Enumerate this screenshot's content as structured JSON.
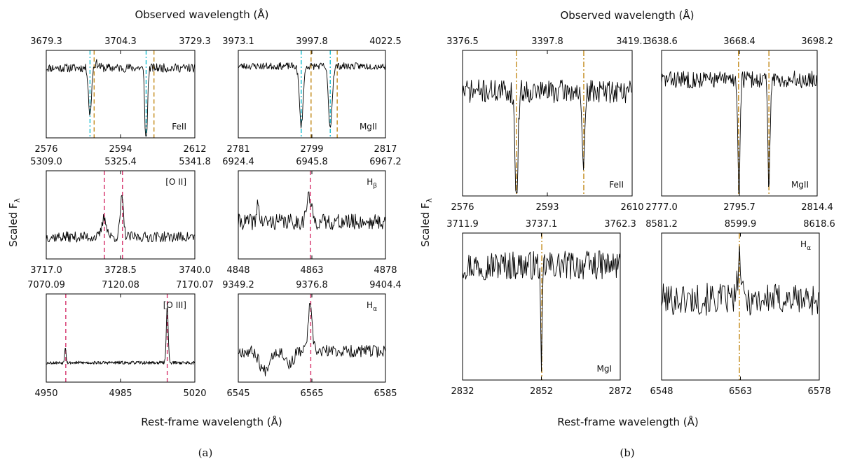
{
  "figure": {
    "left": {
      "top_xlabel": "Observed wavelength (Å)",
      "bottom_xlabel": "Rest-frame wavelength (Å)",
      "ylabel": "Scaled F",
      "ylabel_sub": "λ",
      "caption": "(a)"
    },
    "right": {
      "top_xlabel": "Observed wavelength (Å)",
      "bottom_xlabel": "Rest-frame wavelength (Å)",
      "ylabel": "Scaled F",
      "ylabel_sub": "λ",
      "caption": "(b)"
    }
  },
  "colors": {
    "cyan": "#17becf",
    "orange": "#c38a1a",
    "magenta": "#d6336c",
    "spectrum": "#000000"
  },
  "chart_data": [
    {
      "type": "line",
      "panel": "a-1",
      "title": "",
      "label": "FeII",
      "label_sub": "",
      "top_ticks": [
        "3679.3",
        "3704.3",
        "3729.3"
      ],
      "bottom_ticks": [
        "2576",
        "2594",
        "2612"
      ],
      "xlim": [
        2576,
        2612
      ],
      "lines": [
        {
          "x": 2586.6,
          "color": "cyan"
        },
        {
          "x": 2587.6,
          "color": "orange"
        },
        {
          "x": 2600.2,
          "color": "cyan"
        },
        {
          "x": 2602.1,
          "color": "orange"
        }
      ],
      "features": [
        {
          "x": 2586.6,
          "depth": -0.55,
          "width": 0.35
        },
        {
          "x": 2600.2,
          "depth": -0.92,
          "width": 0.3
        },
        {
          "x": 2588.1,
          "depth": 0.05,
          "width": 0.6
        }
      ],
      "baseline": 0.8,
      "noise": 0.05,
      "xmin_data": 2576,
      "xmax_data": 2612,
      "npts": 230,
      "seed": 11
    },
    {
      "type": "line",
      "panel": "a-2",
      "title": "",
      "label": "MgII",
      "label_sub": "",
      "top_ticks": [
        "3973.1",
        "3997.8",
        "4022.5"
      ],
      "bottom_ticks": [
        "2781",
        "2799",
        "2817"
      ],
      "xlim": [
        2781,
        2817
      ],
      "lines": [
        {
          "x": 2796.4,
          "color": "cyan"
        },
        {
          "x": 2798.8,
          "color": "orange"
        },
        {
          "x": 2803.5,
          "color": "cyan"
        },
        {
          "x": 2805.2,
          "color": "orange"
        }
      ],
      "features": [
        {
          "x": 2796.4,
          "depth": -0.68,
          "width": 0.45
        },
        {
          "x": 2803.5,
          "depth": -0.7,
          "width": 0.45
        }
      ],
      "baseline": 0.82,
      "noise": 0.04,
      "xmin_data": 2781,
      "xmax_data": 2817,
      "npts": 230,
      "seed": 23
    },
    {
      "type": "line",
      "panel": "a-3",
      "title": "",
      "label": "[O II]",
      "label_sub": "",
      "top_ticks": [
        "5309.0",
        "5325.4",
        "5341.8"
      ],
      "bottom_ticks": [
        "3717.0",
        "3728.5",
        "3740.0"
      ],
      "xlim": [
        3717.0,
        3740.0
      ],
      "lines": [
        {
          "x": 3726.0,
          "color": "magenta"
        },
        {
          "x": 3728.8,
          "color": "magenta"
        }
      ],
      "features": [
        {
          "x": 3726.0,
          "depth": 0.22,
          "width": 0.35
        },
        {
          "x": 3728.7,
          "depth": 0.44,
          "width": 0.25
        }
      ],
      "baseline": 0.25,
      "noise": 0.06,
      "xmin_data": 3717.0,
      "xmax_data": 3740.0,
      "npts": 200,
      "seed": 37
    },
    {
      "type": "line",
      "panel": "a-4",
      "title": "",
      "label": "H",
      "label_sub": "β",
      "top_ticks": [
        "6924.4",
        "6945.8",
        "6967.2"
      ],
      "bottom_ticks": [
        "4848",
        "4863",
        "4878"
      ],
      "xlim": [
        4848,
        4878
      ],
      "lines": [
        {
          "x": 4862.7,
          "color": "magenta"
        }
      ],
      "features": [
        {
          "x": 4862.4,
          "depth": 0.28,
          "width": 0.5
        },
        {
          "x": 4852.0,
          "depth": 0.28,
          "width": 0.18
        }
      ],
      "baseline": 0.42,
      "noise": 0.09,
      "xmin_data": 4848,
      "xmax_data": 4878,
      "npts": 200,
      "seed": 41
    },
    {
      "type": "line",
      "panel": "a-5",
      "title": "",
      "label": "[O III]",
      "label_sub": "",
      "top_ticks": [
        "7070.09",
        "7120.08",
        "7170.07"
      ],
      "bottom_ticks": [
        "4950",
        "4985",
        "5020"
      ],
      "xlim": [
        4950,
        5020
      ],
      "lines": [
        {
          "x": 4959.2,
          "color": "magenta"
        },
        {
          "x": 5007.0,
          "color": "magenta"
        }
      ],
      "features": [
        {
          "x": 4959.0,
          "depth": 0.18,
          "width": 0.35
        },
        {
          "x": 5007.0,
          "depth": 0.64,
          "width": 0.45
        }
      ],
      "baseline": 0.22,
      "noise": 0.018,
      "xmin_data": 4950,
      "xmax_data": 5020,
      "npts": 330,
      "seed": 53
    },
    {
      "type": "line",
      "panel": "a-6",
      "title": "",
      "label": "H",
      "label_sub": "α",
      "top_ticks": [
        "9349.2",
        "9376.8",
        "9404.4"
      ],
      "bottom_ticks": [
        "6545",
        "6565",
        "6585"
      ],
      "xlim": [
        6545,
        6585
      ],
      "lines": [
        {
          "x": 6564.7,
          "color": "magenta"
        }
      ],
      "features": [
        {
          "x": 6564.5,
          "depth": 0.5,
          "width": 0.55
        },
        {
          "x": 6552.0,
          "depth": -0.22,
          "width": 1.2
        },
        {
          "x": 6559.0,
          "depth": -0.15,
          "width": 1.0
        }
      ],
      "baseline": 0.35,
      "noise": 0.07,
      "xmin_data": 6545,
      "xmax_data": 6585,
      "npts": 180,
      "seed": 67
    },
    {
      "type": "line",
      "panel": "b-1",
      "title": "",
      "label": "FeII",
      "label_sub": "",
      "top_ticks": [
        "3376.5",
        "3397.8",
        "3419.1"
      ],
      "bottom_ticks": [
        "2576",
        "2593",
        "2610"
      ],
      "xlim": [
        2576,
        2610
      ],
      "lines": [
        {
          "x": 2586.8,
          "color": "orange"
        },
        {
          "x": 2600.3,
          "color": "orange"
        }
      ],
      "features": [
        {
          "x": 2586.8,
          "depth": -0.75,
          "width": 0.3
        },
        {
          "x": 2600.2,
          "depth": -0.52,
          "width": 0.3
        }
      ],
      "baseline": 0.72,
      "noise": 0.08,
      "xmin_data": 2576,
      "xmax_data": 2610,
      "npts": 230,
      "seed": 71
    },
    {
      "type": "line",
      "panel": "b-2",
      "title": "",
      "label": "MgII",
      "label_sub": "",
      "top_ticks": [
        "3638.6",
        "3668.4",
        "3698.2"
      ],
      "bottom_ticks": [
        "2777.0",
        "2795.7",
        "2814.4"
      ],
      "xlim": [
        2777.0,
        2814.4
      ],
      "lines": [
        {
          "x": 2795.5,
          "color": "orange"
        },
        {
          "x": 2802.8,
          "color": "orange"
        }
      ],
      "features": [
        {
          "x": 2795.6,
          "depth": -0.82,
          "width": 0.25
        },
        {
          "x": 2802.8,
          "depth": -0.78,
          "width": 0.25
        }
      ],
      "baseline": 0.8,
      "noise": 0.06,
      "xmin_data": 2777.0,
      "xmax_data": 2814.4,
      "npts": 240,
      "seed": 83
    },
    {
      "type": "line",
      "panel": "b-3",
      "title": "",
      "label": "MgI",
      "label_sub": "",
      "top_ticks": [
        "3711.9",
        "3737.1",
        "3762.3"
      ],
      "bottom_ticks": [
        "2832",
        "2852",
        "2872"
      ],
      "xlim": [
        2832,
        2872
      ],
      "lines": [
        {
          "x": 2852.1,
          "color": "orange"
        }
      ],
      "features": [
        {
          "x": 2852.0,
          "depth": -0.82,
          "width": 0.18
        }
      ],
      "baseline": 0.78,
      "noise": 0.1,
      "xmin_data": 2832,
      "xmax_data": 2872,
      "npts": 200,
      "seed": 97
    },
    {
      "type": "line",
      "panel": "b-4",
      "title": "",
      "label": "H",
      "label_sub": "α",
      "top_ticks": [
        "8581.2",
        "8599.9",
        "8618.6"
      ],
      "bottom_ticks": [
        "6548",
        "6563",
        "6578"
      ],
      "xlim": [
        6548,
        6578
      ],
      "lines": [
        {
          "x": 6562.8,
          "color": "orange"
        }
      ],
      "features": [
        {
          "x": 6562.8,
          "depth": 0.28,
          "width": 0.3
        }
      ],
      "baseline": 0.55,
      "noise": 0.11,
      "xmin_data": 6548,
      "xmax_data": 6578,
      "npts": 180,
      "seed": 101
    }
  ]
}
